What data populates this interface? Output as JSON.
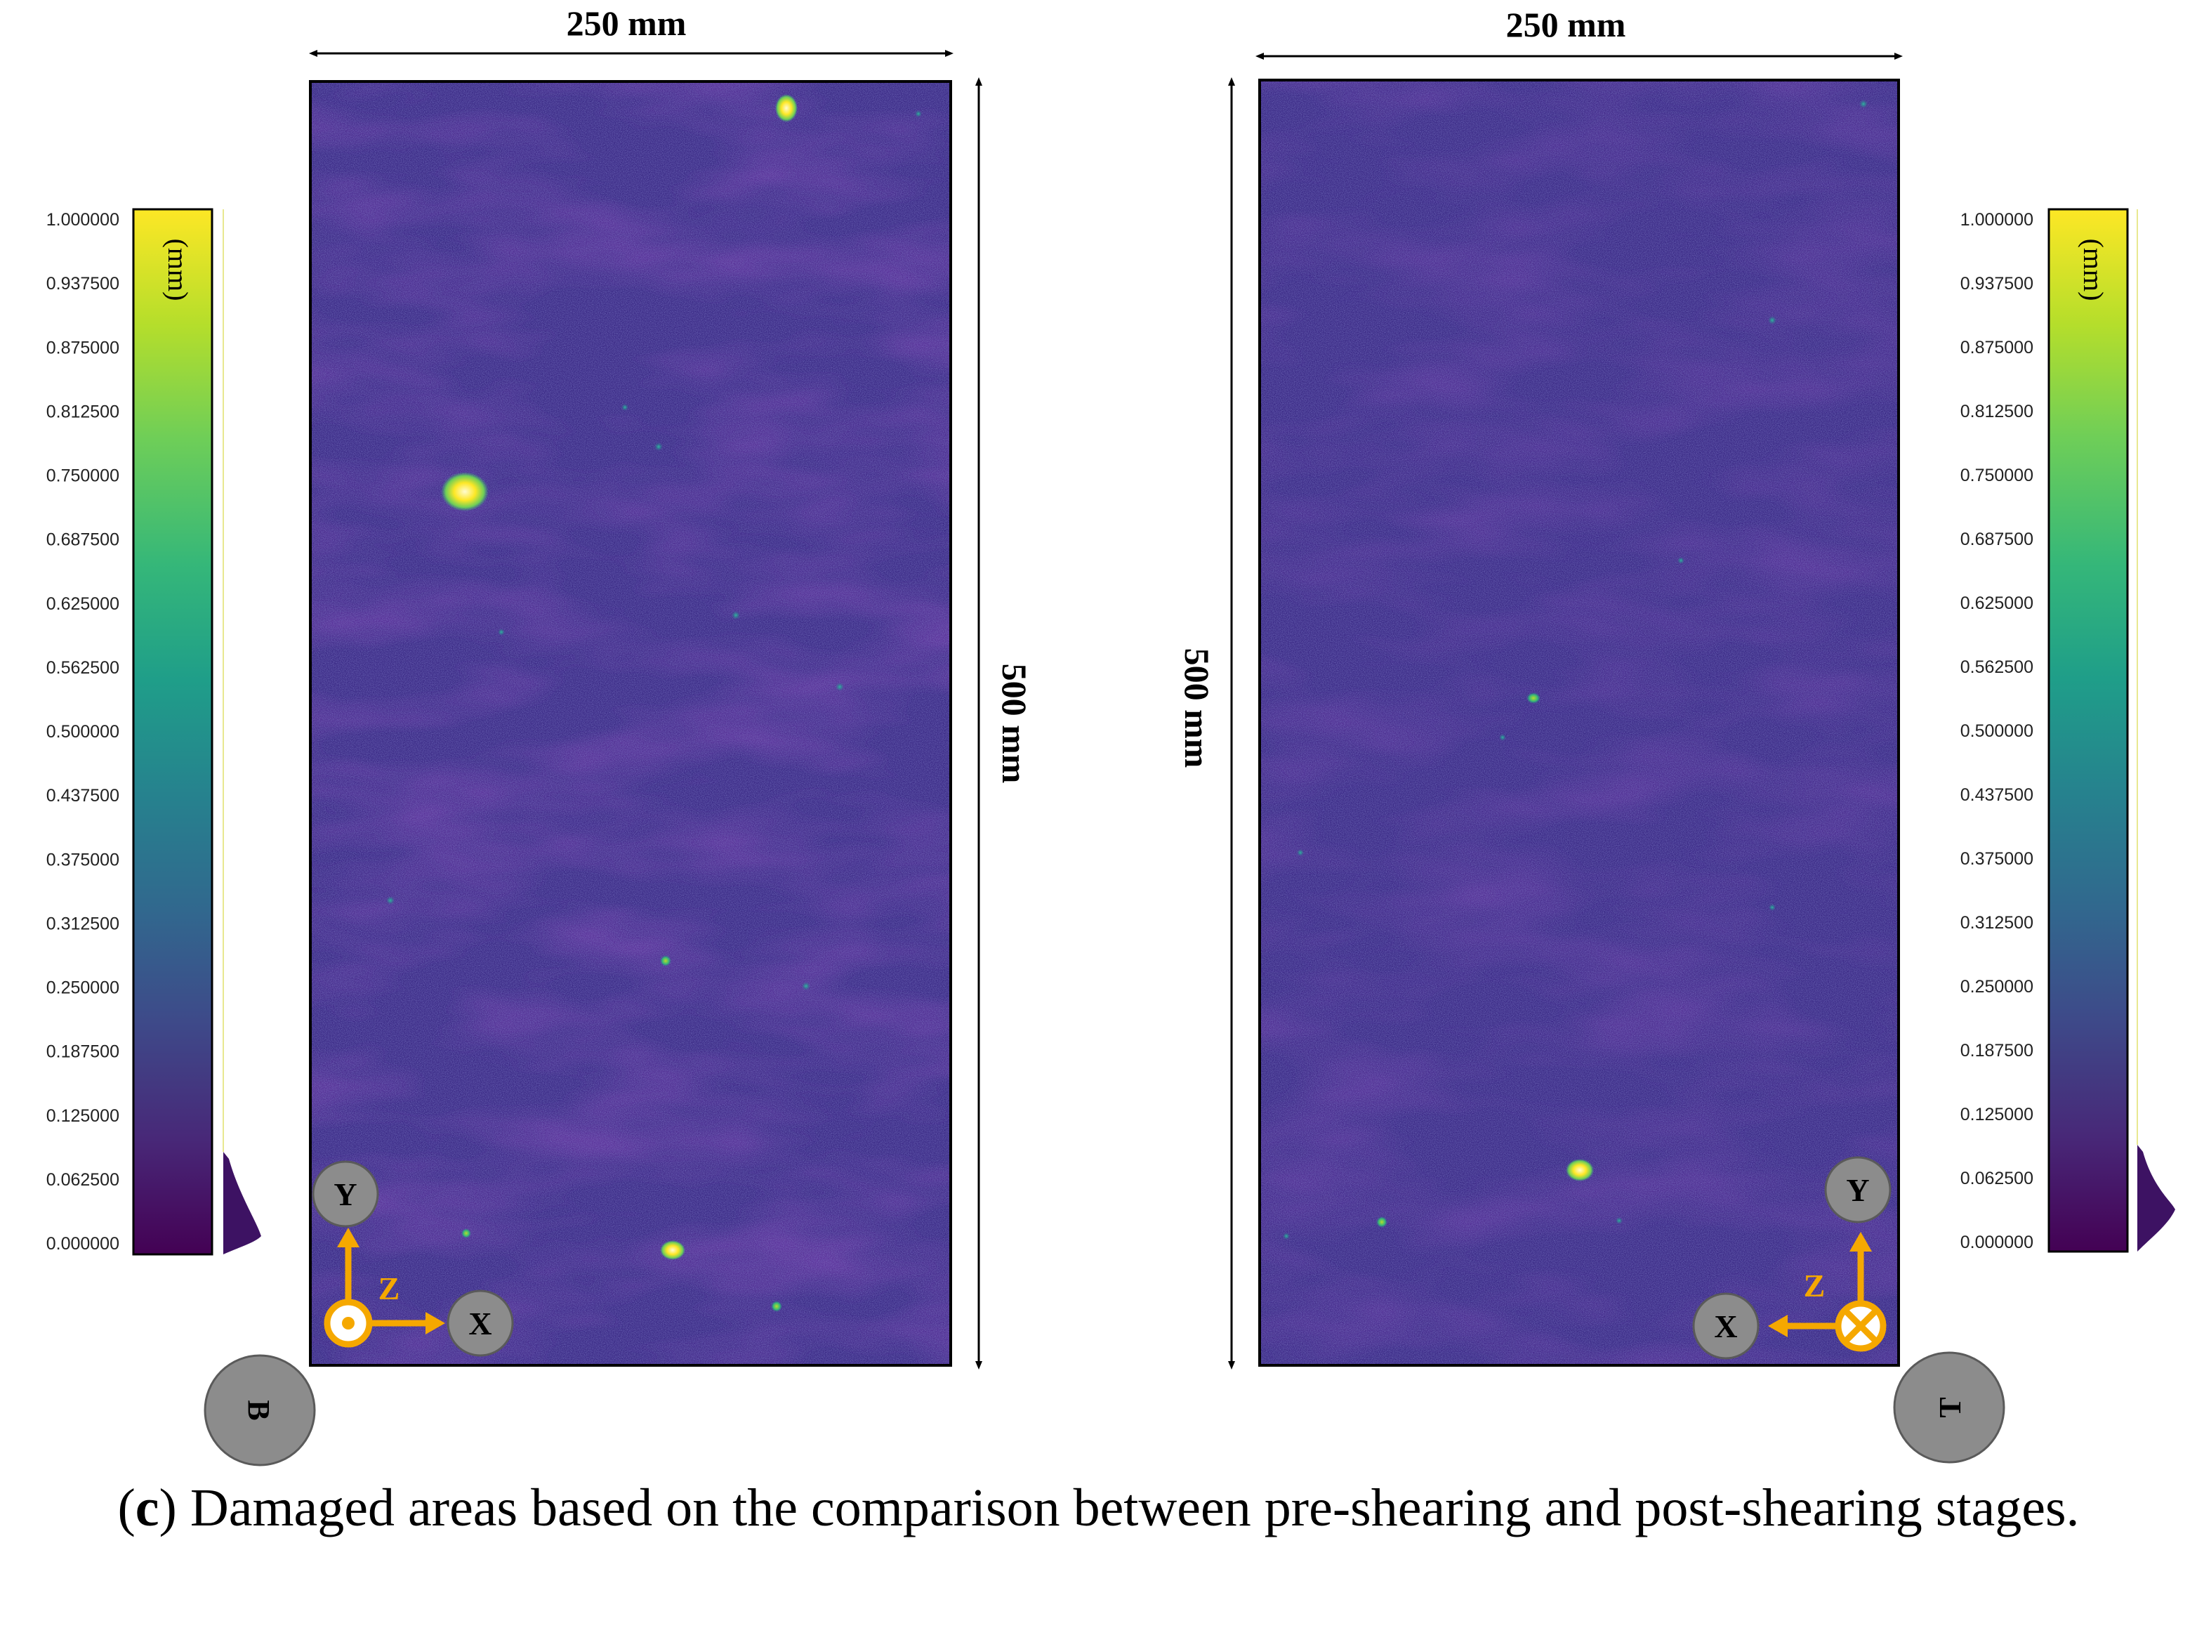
{
  "panels": [
    {
      "width_label": "250 mm",
      "height_label": "500 mm",
      "face_label": "B",
      "axes": {
        "y": "Y",
        "x": "X",
        "z": "Z"
      },
      "z_direction": "out-of-page"
    },
    {
      "width_label": "250 mm",
      "height_label": "500 mm",
      "face_label": "T",
      "axes": {
        "y": "Y",
        "x": "X",
        "z": "Z"
      },
      "z_direction": "into-page"
    }
  ],
  "colorbar": {
    "unit": "(mm)",
    "ticks": [
      "1.000000",
      "0.937500",
      "0.875000",
      "0.812500",
      "0.750000",
      "0.687500",
      "0.625000",
      "0.562500",
      "0.500000",
      "0.437500",
      "0.375000",
      "0.312500",
      "0.250000",
      "0.187500",
      "0.125000",
      "0.062500",
      "0.000000"
    ],
    "colormap": [
      "#fde725",
      "#b5de2b",
      "#6ece58",
      "#35b779",
      "#1f9e89",
      "#26828e",
      "#31688e",
      "#3e4989",
      "#482878",
      "#440154"
    ]
  },
  "colors": {
    "background_map": "#3b2a86",
    "axis_arrow": "#f5a800",
    "axis_circle": "#8c8c8c"
  },
  "caption": {
    "label": "c",
    "text": "Damaged areas based on the comparison between pre-shearing and post-shearing stages."
  }
}
